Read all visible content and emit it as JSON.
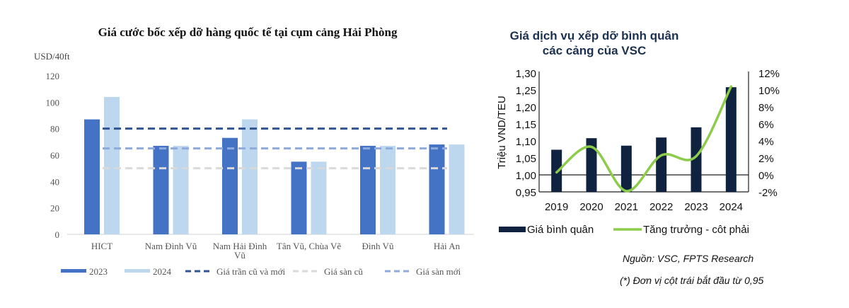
{
  "chart_data": [
    {
      "type": "bar",
      "title": "Giá cước bốc xếp dỡ hàng quốc tế tại cụm cảng Hải Phòng",
      "ylabel": "USD/40ft",
      "xlabel": "",
      "ylim": [
        0,
        120
      ],
      "yticks": [
        "0",
        "20",
        "40",
        "60",
        "80",
        "100",
        "120"
      ],
      "ytick_values": [
        0,
        20,
        40,
        60,
        80,
        100,
        120
      ],
      "categories": [
        "HICT",
        "Nam Đình Vũ",
        "Nam Hải Đình Vũ",
        "Tân Vũ, Chùa Vẽ",
        "Đình Vũ",
        "Hải An"
      ],
      "category_lines": [
        [
          "HICT"
        ],
        [
          "Nam Đình Vũ"
        ],
        [
          "Nam Hải Đình",
          "Vũ"
        ],
        [
          "Tân Vũ, Chùa Vẽ"
        ],
        [
          "Đình Vũ"
        ],
        [
          "Hải An"
        ]
      ],
      "series": [
        {
          "name": "2023",
          "values": [
            87,
            67,
            73,
            55,
            67,
            68
          ],
          "color": "#4472c4"
        },
        {
          "name": "2024",
          "values": [
            104,
            67,
            87,
            55,
            67,
            68
          ],
          "color": "#bdd7ee"
        }
      ],
      "reference_lines": [
        {
          "name": "Giá trần cũ và mới",
          "value": 80,
          "color": "#2f5597"
        },
        {
          "name": "Giá sàn cũ",
          "value": 50,
          "color": "#d9d9d9"
        },
        {
          "name": "Giá sàn mới",
          "value": 65,
          "color": "#8faadc"
        }
      ],
      "legend": [
        "2023",
        "2024",
        "Giá trần cũ và mới",
        "Giá sàn cũ",
        "Giá sàn mới"
      ],
      "legend_position": "bottom",
      "grid": false
    },
    {
      "type": "bar",
      "title": "Giá dịch vụ xếp dỡ bình quân các cảng của VSC",
      "title_lines": [
        "Giá dịch vụ xếp dỡ bình quân",
        "các cảng của VSC"
      ],
      "ylabel": "Triệu VND/TEU",
      "xlabel": "",
      "categories": [
        "2019",
        "2020",
        "2021",
        "2022",
        "2023",
        "2024"
      ],
      "ylim": [
        0.95,
        1.3
      ],
      "yticks": [
        "0,95",
        "1,00",
        "1,05",
        "1,10",
        "1,15",
        "1,20",
        "1,25",
        "1,30"
      ],
      "ytick_values": [
        0.95,
        1.0,
        1.05,
        1.1,
        1.15,
        1.2,
        1.25,
        1.3
      ],
      "y2lim": [
        -2,
        12
      ],
      "y2ticks": [
        "-2%",
        "0%",
        "2%",
        "4%",
        "6%",
        "8%",
        "10%",
        "12%"
      ],
      "y2tick_values": [
        -2,
        0,
        2,
        4,
        6,
        8,
        10,
        12
      ],
      "series": [
        {
          "name": "Giá bình quân",
          "type": "bar",
          "axis": "left",
          "values": [
            1.074,
            1.108,
            1.086,
            1.11,
            1.14,
            1.258
          ],
          "color": "#0f2340"
        },
        {
          "name": "Tăng trưởng - côt phải",
          "type": "line",
          "axis": "right",
          "values": [
            0.3,
            3.3,
            -1.9,
            2.3,
            2.2,
            10.4
          ],
          "color": "#8ccc4a"
        }
      ],
      "legend": [
        "Giá bình quân",
        "Tăng trưởng - côt phải"
      ],
      "legend_position": "bottom",
      "grid": false
    }
  ],
  "notes": {
    "source": "Nguồn: VSC, FPTS Research",
    "footnote": "(*) Đơn vị cột trái bắt đầu từ 0,95"
  }
}
